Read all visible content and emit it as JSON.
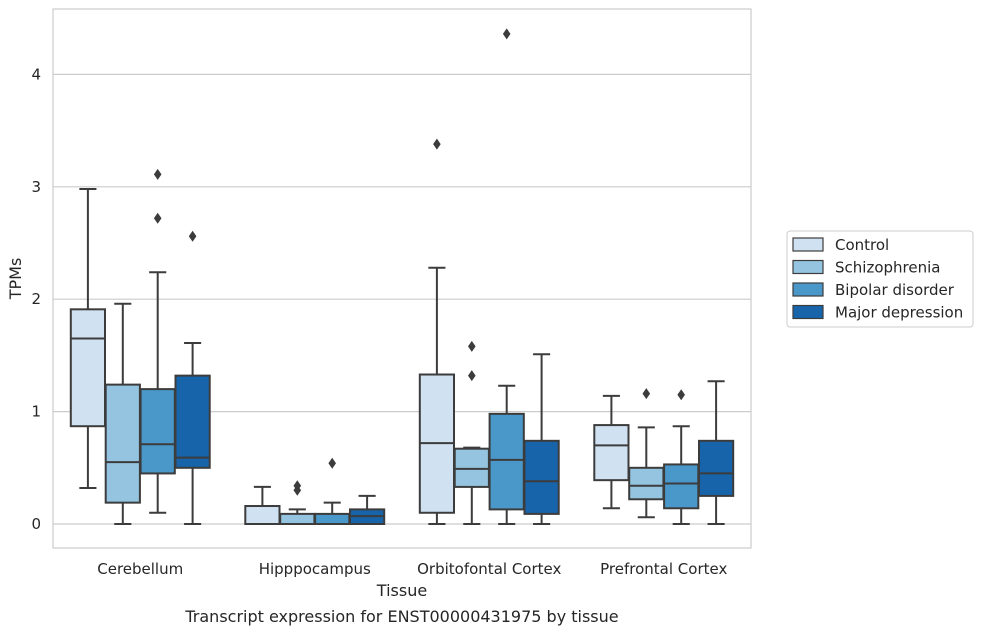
{
  "chart_data": {
    "type": "box",
    "caption": "Transcript expression for ENST00000431975 by tissue",
    "xlabel": "Tissue",
    "ylabel": "TPMs",
    "ylim": [
      -0.21,
      4.58
    ],
    "yticks": [
      0,
      1,
      2,
      3,
      4
    ],
    "grid": "horizontal",
    "legend_position": "right",
    "categories": [
      "Cerebellum",
      "Hipppocampus",
      "Orbitofontal Cortex",
      "Prefrontal Cortex"
    ],
    "series": [
      {
        "name": "Control",
        "color": "#d0e1f2",
        "boxes": [
          {
            "whislo": 0.32,
            "q1": 0.87,
            "med": 1.65,
            "q3": 1.91,
            "whishi": 2.98,
            "fliers": []
          },
          {
            "whislo": 0.0,
            "q1": 0.0,
            "med": 0.0,
            "q3": 0.16,
            "whishi": 0.33,
            "fliers": []
          },
          {
            "whislo": 0.0,
            "q1": 0.1,
            "med": 0.72,
            "q3": 1.33,
            "whishi": 2.28,
            "fliers": [
              3.38
            ]
          },
          {
            "whislo": 0.14,
            "q1": 0.39,
            "med": 0.7,
            "q3": 0.88,
            "whishi": 1.14,
            "fliers": []
          }
        ]
      },
      {
        "name": "Schizophrenia",
        "color": "#94c4df",
        "boxes": [
          {
            "whislo": 0.0,
            "q1": 0.19,
            "med": 0.55,
            "q3": 1.24,
            "whishi": 1.96,
            "fliers": []
          },
          {
            "whislo": 0.0,
            "q1": 0.0,
            "med": 0.0,
            "q3": 0.09,
            "whishi": 0.13,
            "fliers": [
              0.3,
              0.34
            ]
          },
          {
            "whislo": 0.0,
            "q1": 0.33,
            "med": 0.49,
            "q3": 0.67,
            "whishi": 0.68,
            "fliers": [
              1.32,
              1.58
            ]
          },
          {
            "whislo": 0.06,
            "q1": 0.22,
            "med": 0.34,
            "q3": 0.5,
            "whishi": 0.86,
            "fliers": [
              1.16
            ]
          }
        ]
      },
      {
        "name": "Bipolar disorder",
        "color": "#4a98c9",
        "boxes": [
          {
            "whislo": 0.1,
            "q1": 0.45,
            "med": 0.71,
            "q3": 1.2,
            "whishi": 2.24,
            "fliers": [
              2.72,
              3.11
            ]
          },
          {
            "whislo": 0.0,
            "q1": 0.0,
            "med": 0.0,
            "q3": 0.09,
            "whishi": 0.19,
            "fliers": [
              0.54
            ]
          },
          {
            "whislo": 0.0,
            "q1": 0.13,
            "med": 0.57,
            "q3": 0.98,
            "whishi": 1.23,
            "fliers": [
              4.36
            ]
          },
          {
            "whislo": 0.0,
            "q1": 0.14,
            "med": 0.36,
            "q3": 0.53,
            "whishi": 0.87,
            "fliers": [
              1.15
            ]
          }
        ]
      },
      {
        "name": "Major depression",
        "color": "#1764ab",
        "boxes": [
          {
            "whislo": 0.0,
            "q1": 0.5,
            "med": 0.59,
            "q3": 1.32,
            "whishi": 1.61,
            "fliers": [
              2.56
            ]
          },
          {
            "whislo": 0.0,
            "q1": 0.0,
            "med": 0.07,
            "q3": 0.13,
            "whishi": 0.25,
            "fliers": []
          },
          {
            "whislo": 0.0,
            "q1": 0.09,
            "med": 0.38,
            "q3": 0.74,
            "whishi": 1.51,
            "fliers": []
          },
          {
            "whislo": 0.0,
            "q1": 0.25,
            "med": 0.45,
            "q3": 0.74,
            "whishi": 1.27,
            "fliers": []
          }
        ]
      }
    ]
  }
}
